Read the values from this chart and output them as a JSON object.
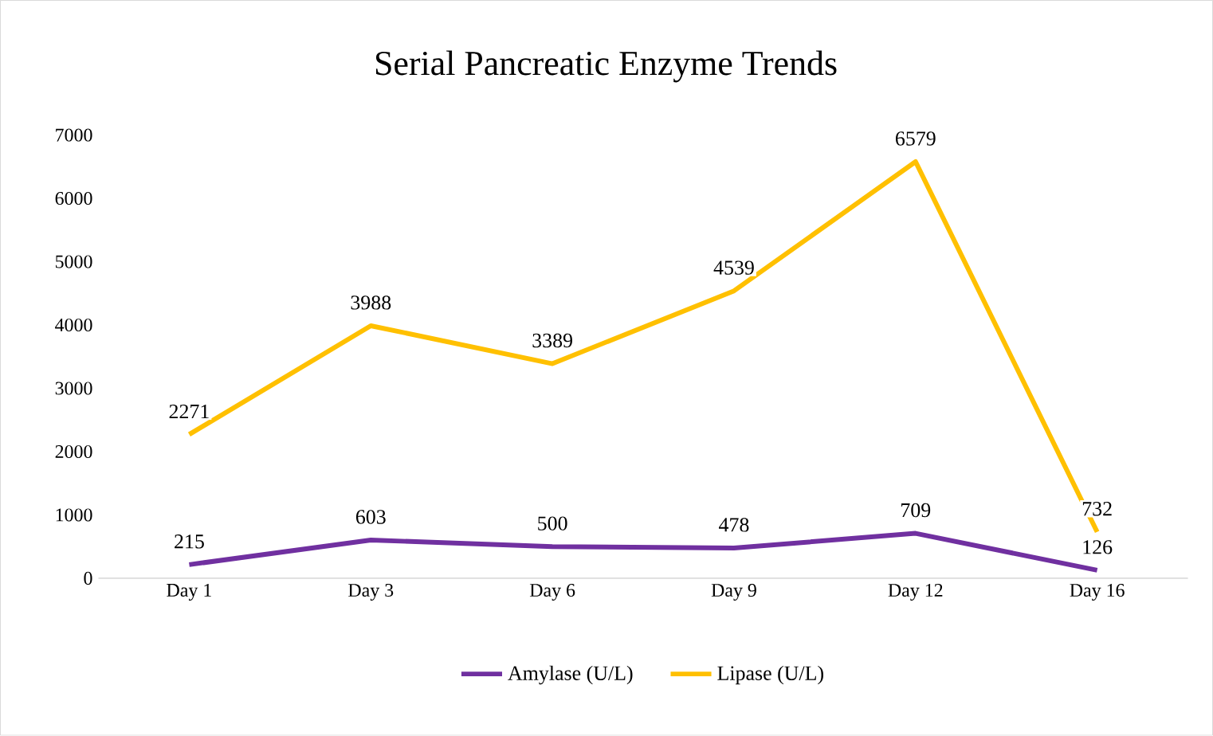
{
  "chart_data": {
    "type": "line",
    "title": "Serial Pancreatic Enzyme Trends",
    "categories": [
      "Day 1",
      "Day 3",
      "Day 6",
      "Day 9",
      "Day 12",
      "Day 16"
    ],
    "series": [
      {
        "name": "Amylase (U/L)",
        "color": "#7030a0",
        "values": [
          215,
          603,
          500,
          478,
          709,
          126
        ]
      },
      {
        "name": "Lipase (U/L)",
        "color": "#ffc000",
        "values": [
          2271,
          3988,
          3389,
          4539,
          6579,
          732
        ]
      }
    ],
    "ylim": [
      0,
      7000
    ],
    "yticks": [
      0,
      1000,
      2000,
      3000,
      4000,
      5000,
      6000,
      7000
    ],
    "data_labels": true,
    "legend": "bottom"
  }
}
